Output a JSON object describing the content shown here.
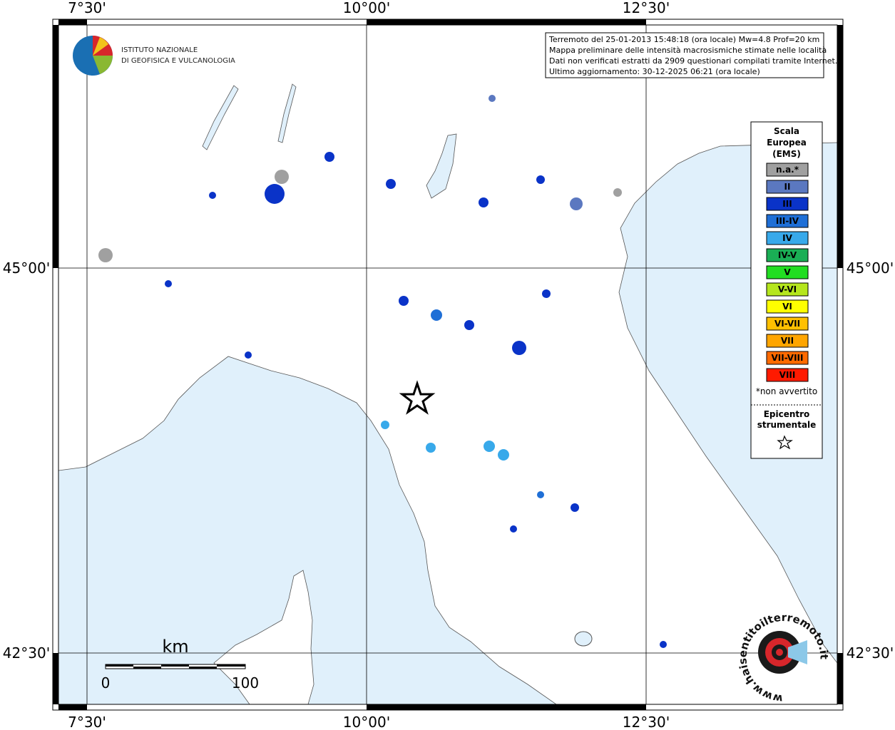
{
  "info": {
    "lines": [
      "Terremoto del 25-01-2013 15:48:18 (ora locale) Mw=4.8 Prof=20 km",
      "Mappa preliminare delle intensità macrosismiche stimate nelle località",
      "Dati non verificati estratti da 2909 questionari compilati tramite Internet.",
      "Ultimo aggiornamento: 30-12-2025 06:21 (ora locale)"
    ]
  },
  "logo_ingv": {
    "line1": "ISTITUTO NAZIONALE",
    "line2": "DI GEOFISICA E VULCANOLOGIA"
  },
  "axes": {
    "lon_ticks": [
      {
        "value": 7.5,
        "label": "7°30'"
      },
      {
        "value": 10,
        "label": "10°00'"
      },
      {
        "value": 12.5,
        "label": "12°30'"
      }
    ],
    "lat_ticks": [
      {
        "value": 45,
        "label": "45°00'"
      },
      {
        "value": 42.5,
        "label": "42°30'"
      }
    ]
  },
  "legend": {
    "title": [
      "Scala",
      "Europea",
      "(EMS)"
    ],
    "items": [
      {
        "label": "n.a.*",
        "color": "#a0a0a0"
      },
      {
        "label": "II",
        "color": "#5b78c0"
      },
      {
        "label": "III",
        "color": "#0a33c8"
      },
      {
        "label": "III-IV",
        "color": "#1f6fd6"
      },
      {
        "label": "IV",
        "color": "#38a9ea"
      },
      {
        "label": "IV-V",
        "color": "#1aae55"
      },
      {
        "label": "V",
        "color": "#22dd22"
      },
      {
        "label": "V-VI",
        "color": "#b5e61d"
      },
      {
        "label": "VI",
        "color": "#ffff00"
      },
      {
        "label": "VI-VII",
        "color": "#ffc000"
      },
      {
        "label": "VII",
        "color": "#ffa500"
      },
      {
        "label": "VII-VIII",
        "color": "#ff6a00"
      },
      {
        "label": "VIII",
        "color": "#ff1a00"
      }
    ],
    "note": "*non avvertito",
    "epicenter": [
      "Epicentro",
      "strumentale"
    ]
  },
  "scale_bar": {
    "unit": "km",
    "labels": [
      "0",
      "100"
    ]
  },
  "logo_hsit": {
    "text": "www.haisentitoilterremoto.it"
  }
}
